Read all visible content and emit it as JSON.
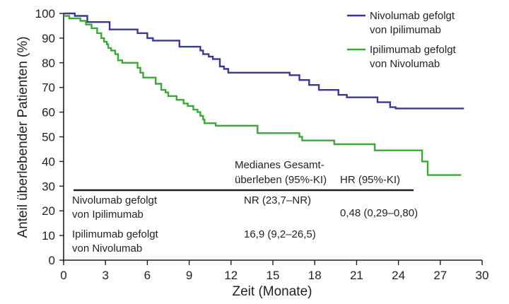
{
  "chart_data": {
    "type": "line",
    "xlabel": "Zeit (Monate)",
    "ylabel": "Anteil überlebender Patienten (%)",
    "xlim": [
      0,
      30
    ],
    "ylim": [
      0,
      100
    ],
    "x_ticks": [
      "0",
      "3",
      "6",
      "9",
      "12",
      "15",
      "18",
      "21",
      "24",
      "27",
      "30"
    ],
    "y_ticks": [
      "0",
      "10",
      "20",
      "30",
      "40",
      "50",
      "60",
      "70",
      "80",
      "90",
      "100"
    ],
    "grid": false,
    "legend_position": "top-right",
    "series": [
      {
        "name_lines": [
          "Nivolumab gefolgt",
          "von Ipilimumab"
        ],
        "color": "#3a3895",
        "step": true,
        "points": [
          [
            0,
            100
          ],
          [
            0.8,
            99
          ],
          [
            1.7,
            96.5
          ],
          [
            3.3,
            93.5
          ],
          [
            5.3,
            92
          ],
          [
            6,
            90
          ],
          [
            6.4,
            89
          ],
          [
            8.3,
            86.5
          ],
          [
            9.8,
            85
          ],
          [
            10,
            83.5
          ],
          [
            10.4,
            82.5
          ],
          [
            10.7,
            81.5
          ],
          [
            11.2,
            78.5
          ],
          [
            11.5,
            77.5
          ],
          [
            11.8,
            76
          ],
          [
            16.2,
            75
          ],
          [
            16.9,
            73
          ],
          [
            17.6,
            71
          ],
          [
            18.3,
            69
          ],
          [
            19.7,
            67
          ],
          [
            20.3,
            66
          ],
          [
            22.5,
            64
          ],
          [
            23.4,
            62
          ],
          [
            23.8,
            61.5
          ],
          [
            28.7,
            61.5
          ]
        ]
      },
      {
        "name_lines": [
          "Ipilimumab gefolgt",
          "von Nivolumab"
        ],
        "color": "#3aaa35",
        "step": true,
        "points": [
          [
            0,
            99
          ],
          [
            0.4,
            98
          ],
          [
            1.2,
            97
          ],
          [
            1.6,
            95.5
          ],
          [
            2.0,
            94
          ],
          [
            2.4,
            92
          ],
          [
            2.7,
            90
          ],
          [
            2.9,
            88.5
          ],
          [
            3.1,
            87.5
          ],
          [
            3.2,
            86
          ],
          [
            3.4,
            85
          ],
          [
            3.7,
            83.5
          ],
          [
            3.9,
            81
          ],
          [
            4.2,
            80
          ],
          [
            5.3,
            78
          ],
          [
            5.5,
            76
          ],
          [
            5.7,
            74
          ],
          [
            6.6,
            71.5
          ],
          [
            7.0,
            69
          ],
          [
            7.3,
            68
          ],
          [
            7.5,
            66.5
          ],
          [
            8.1,
            65
          ],
          [
            8.6,
            63.5
          ],
          [
            8.9,
            62.5
          ],
          [
            9.3,
            61
          ],
          [
            9.6,
            60
          ],
          [
            9.8,
            58.5
          ],
          [
            10.0,
            57
          ],
          [
            10.1,
            55.5
          ],
          [
            10.9,
            54.5
          ],
          [
            13.9,
            51.5
          ],
          [
            16.9,
            50
          ],
          [
            17.1,
            48.5
          ],
          [
            19.4,
            47
          ],
          [
            22.3,
            44.5
          ],
          [
            25.7,
            40
          ],
          [
            26.1,
            34.5
          ],
          [
            28.5,
            34.5
          ]
        ]
      }
    ]
  },
  "table": {
    "col1_header_lines": [
      "Medianes Gesamt-",
      "überleben (95%-KI)"
    ],
    "col2_header": "HR (95%-KI)",
    "rows": [
      {
        "label_lines": [
          "Nivolumab gefolgt",
          "von Ipilimumab"
        ],
        "median": "NR (23,7–NR)"
      },
      {
        "label_lines": [
          "Ipilimumab gefolgt",
          "von Nivolumab"
        ],
        "median": "16,9 (9,2–26,5)"
      }
    ],
    "hr": "0,48 (0,29–0,80)"
  }
}
